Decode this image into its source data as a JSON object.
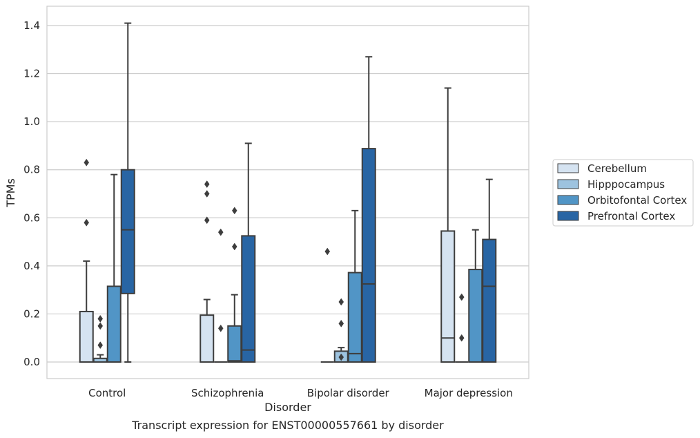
{
  "caption": "Transcript expression for ENST00000557661 by disorder",
  "chart_data": {
    "type": "box",
    "title": "",
    "xlabel": "Disorder",
    "ylabel": "TPMs",
    "ylim": [
      -0.07,
      1.48
    ],
    "yticks": [
      0.0,
      0.2,
      0.4,
      0.6,
      0.8,
      1.0,
      1.2,
      1.4
    ],
    "ytick_labels": [
      "0.0",
      "0.2",
      "0.4",
      "0.6",
      "0.8",
      "1.0",
      "1.2",
      "1.4"
    ],
    "grid": "horizontal",
    "legend_position": "right",
    "categories": [
      "Control",
      "Schizophrenia",
      "Bipolar disorder",
      "Major depression"
    ],
    "series": [
      {
        "name": "Cerebellum",
        "color": "#d5e3f1",
        "boxes": [
          {
            "q1": 0.0,
            "median": 0.0,
            "q3": 0.21,
            "whisker_low": 0.0,
            "whisker_high": 0.42,
            "outliers": [
              0.58,
              0.83
            ]
          },
          {
            "q1": 0.0,
            "median": 0.0,
            "q3": 0.195,
            "whisker_low": 0.0,
            "whisker_high": 0.26,
            "outliers": [
              0.59,
              0.7,
              0.74
            ]
          },
          {
            "q1": 0.0,
            "median": 0.0,
            "q3": 0.0,
            "whisker_low": 0.0,
            "whisker_high": 0.0,
            "outliers": [
              0.46
            ]
          },
          {
            "q1": 0.0,
            "median": 0.1,
            "q3": 0.545,
            "whisker_low": 0.0,
            "whisker_high": 1.14,
            "outliers": []
          }
        ]
      },
      {
        "name": "Hipppocampus",
        "color": "#9dc3df",
        "boxes": [
          {
            "q1": 0.0,
            "median": 0.0,
            "q3": 0.015,
            "whisker_low": 0.0,
            "whisker_high": 0.03,
            "outliers": [
              0.07,
              0.15,
              0.18
            ]
          },
          {
            "q1": 0.0,
            "median": 0.0,
            "q3": 0.0,
            "whisker_low": 0.0,
            "whisker_high": 0.0,
            "outliers": [
              0.14,
              0.54
            ]
          },
          {
            "q1": 0.0,
            "median": 0.0,
            "q3": 0.045,
            "whisker_low": 0.0,
            "whisker_high": 0.06,
            "outliers": [
              0.02,
              0.16,
              0.25
            ]
          },
          {
            "q1": 0.0,
            "median": 0.0,
            "q3": 0.0,
            "whisker_low": 0.0,
            "whisker_high": 0.0,
            "outliers": [
              0.1,
              0.27
            ]
          }
        ]
      },
      {
        "name": "Orbitofontal Cortex",
        "color": "#5195c6",
        "boxes": [
          {
            "q1": 0.0,
            "median": 0.0,
            "q3": 0.315,
            "whisker_low": 0.0,
            "whisker_high": 0.78,
            "outliers": []
          },
          {
            "q1": 0.0,
            "median": 0.005,
            "q3": 0.15,
            "whisker_low": 0.0,
            "whisker_high": 0.28,
            "outliers": [
              0.48,
              0.63
            ]
          },
          {
            "q1": 0.0,
            "median": 0.035,
            "q3": 0.372,
            "whisker_low": 0.0,
            "whisker_high": 0.63,
            "outliers": []
          },
          {
            "q1": 0.0,
            "median": 0.0,
            "q3": 0.385,
            "whisker_low": 0.0,
            "whisker_high": 0.55,
            "outliers": []
          }
        ]
      },
      {
        "name": "Prefrontal Cortex",
        "color": "#2865a4",
        "boxes": [
          {
            "q1": 0.285,
            "median": 0.55,
            "q3": 0.8,
            "whisker_low": 0.0,
            "whisker_high": 1.41,
            "outliers": []
          },
          {
            "q1": 0.0,
            "median": 0.05,
            "q3": 0.525,
            "whisker_low": 0.0,
            "whisker_high": 0.91,
            "outliers": []
          },
          {
            "q1": 0.0,
            "median": 0.325,
            "q3": 0.888,
            "whisker_low": 0.0,
            "whisker_high": 1.27,
            "outliers": []
          },
          {
            "q1": 0.0,
            "median": 0.315,
            "q3": 0.51,
            "whisker_low": 0.0,
            "whisker_high": 0.76,
            "outliers": []
          }
        ]
      }
    ]
  }
}
